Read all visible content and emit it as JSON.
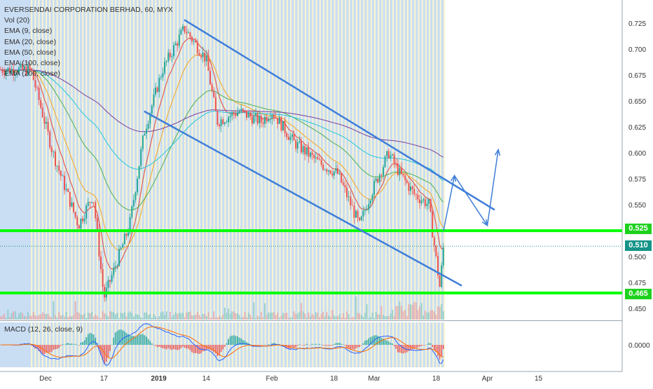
{
  "chart_data": {
    "type": "line",
    "title": "EVERSENDAI CORPORATION BERHAD, 60, MYX",
    "indicators": [
      "Vol (20)",
      "EMA (9, close)",
      "EMA (20, close)",
      "EMA (50, close)",
      "EMA (100, close)",
      "EMA (200, close)"
    ],
    "y_ticks": [
      "0.725",
      "0.700",
      "0.675",
      "0.650",
      "0.625",
      "0.600",
      "0.575",
      "0.550",
      "0.525",
      "0.500",
      "0.475",
      "0.450"
    ],
    "x_ticks": [
      "Dec",
      "17",
      "2019",
      "14",
      "Feb",
      "18",
      "Mar",
      "18",
      "Apr",
      "15"
    ],
    "ylim": [
      0.44,
      0.735
    ],
    "levels": {
      "resistance": "0.525",
      "current": "0.510",
      "support": "0.465"
    },
    "price_path": {
      "x": [
        "Nov 27",
        "Dec 3",
        "Dec 10",
        "Dec 14",
        "Dec 17",
        "Dec 24",
        "Dec 28",
        "Jan 2",
        "Jan 8",
        "Jan 14",
        "Jan 17",
        "Jan 23",
        "Jan 29",
        "Feb 1",
        "Feb 7",
        "Feb 14",
        "Feb 19",
        "Feb 25",
        "Feb 28",
        "Mar 5",
        "Mar 8",
        "Mar 12",
        "Mar 16",
        "Mar 19",
        "Mar 20"
      ],
      "y": [
        0.68,
        0.6,
        0.53,
        0.56,
        0.46,
        0.53,
        0.62,
        0.68,
        0.72,
        0.69,
        0.63,
        0.64,
        0.63,
        0.64,
        0.61,
        0.59,
        0.58,
        0.53,
        0.56,
        0.6,
        0.58,
        0.56,
        0.55,
        0.47,
        0.51
      ]
    },
    "channel": {
      "upper": {
        "from": [
          "Jan 8",
          0.728
        ],
        "to": [
          "Apr 3",
          0.545
        ]
      },
      "lower": {
        "from": [
          "Dec 28",
          0.64
        ],
        "to": [
          "Mar 25",
          0.472
        ]
      }
    },
    "projection": {
      "x": [
        "Mar 20",
        "Mar 23",
        "Apr 1",
        "Apr 4"
      ],
      "y": [
        0.525,
        0.578,
        0.53,
        0.603
      ]
    },
    "macd": {
      "label": "MACD (12, 26, close, 9)",
      "y_ticks": [
        "0.0000"
      ]
    },
    "colors": {
      "candle_up": "#26a69a",
      "candle_down": "#ef5350",
      "channel": "#3f7ed8",
      "level_line": "#00ff00",
      "current_price_tag": "#159488",
      "session_band": "#c9ddf3",
      "gap_stripe": "#fff7cc"
    }
  }
}
